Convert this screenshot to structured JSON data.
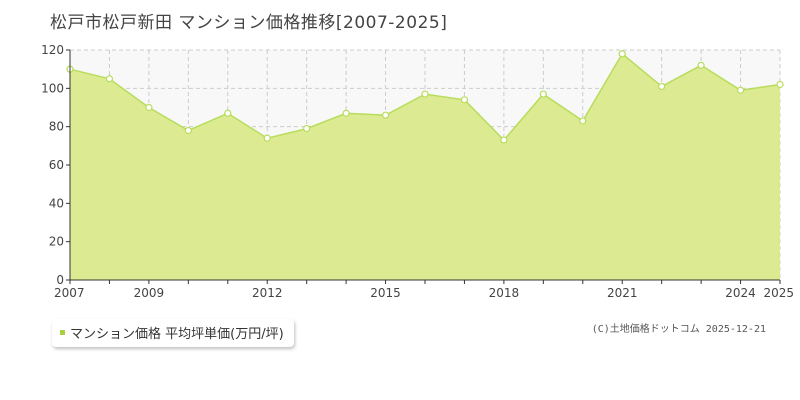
{
  "title": "松戸市松戸新田 マンション価格推移[2007-2025]",
  "legend_label": "マンション価格 平均坪単価(万円/坪)",
  "copyright": "(C)土地価格ドットコム 2025-12-21",
  "colors": {
    "area_fill": "#dceb91",
    "line": "#b8dc5c",
    "point_fill": "#ffffff",
    "point_stroke": "#b8dc5c",
    "grid": "#cccccc",
    "plot_background": "#f8f8f8",
    "legend_marker": "#a8d042"
  },
  "chart_data": {
    "type": "area",
    "title": "松戸市松戸新田 マンション価格推移[2007-2025]",
    "xlabel": "",
    "ylabel": "",
    "x": [
      2007,
      2008,
      2009,
      2010,
      2011,
      2012,
      2013,
      2014,
      2015,
      2016,
      2017,
      2018,
      2019,
      2020,
      2021,
      2022,
      2023,
      2024,
      2025
    ],
    "series": [
      {
        "name": "マンション価格 平均坪単価(万円/坪)",
        "values": [
          110,
          105,
          90,
          78,
          87,
          74,
          79,
          87,
          86,
          97,
          94,
          73,
          97,
          83,
          118,
          101,
          112,
          99,
          102
        ]
      }
    ],
    "xlim": [
      2007,
      2025
    ],
    "ylim": [
      0,
      120
    ],
    "y_ticks": [
      "0",
      "20",
      "40",
      "60",
      "80",
      "100",
      "120"
    ],
    "x_tick_labels": [
      "2007",
      "2009",
      "2012",
      "2015",
      "2018",
      "2021",
      "2024",
      "2025"
    ],
    "x_tick_years": [
      2007,
      2009,
      2012,
      2015,
      2018,
      2021,
      2024,
      2025
    ],
    "grid": true,
    "legend_position": "bottom-left"
  }
}
